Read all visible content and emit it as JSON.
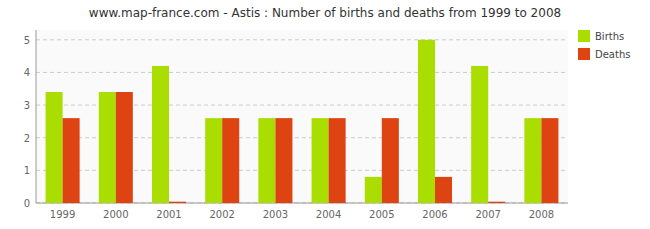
{
  "chart_data": {
    "type": "bar",
    "title": "www.map-france.com - Astis : Number of births and deaths from 1999 to 2008",
    "categories": [
      "1999",
      "2000",
      "2001",
      "2002",
      "2003",
      "2004",
      "2005",
      "2006",
      "2007",
      "2008"
    ],
    "series": [
      {
        "name": "Births",
        "color": "#aadd00",
        "values": [
          3.4,
          3.4,
          4.2,
          2.6,
          2.6,
          2.6,
          0.8,
          5.0,
          4.2,
          2.6
        ]
      },
      {
        "name": "Deaths",
        "color": "#dd4411",
        "values": [
          2.6,
          3.4,
          0.04,
          2.6,
          2.6,
          2.6,
          2.6,
          0.8,
          0.04,
          2.6
        ]
      }
    ],
    "ylim": [
      0,
      5.3
    ],
    "yticks": [
      0,
      1,
      2,
      3,
      4,
      5
    ],
    "grid": true,
    "legend": "upper right"
  }
}
